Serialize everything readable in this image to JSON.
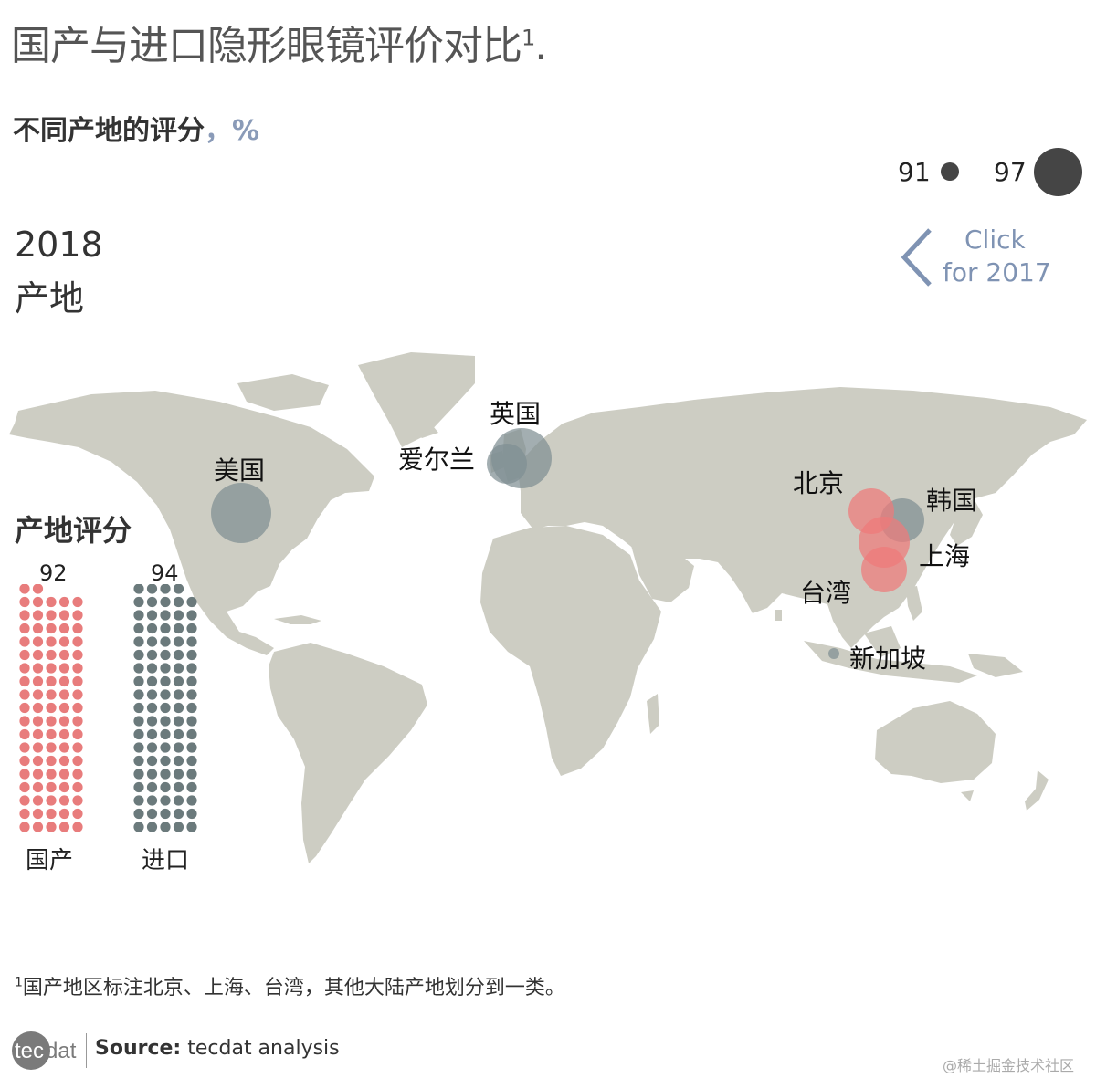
{
  "title": "国产与进口隐形眼镜评价对比",
  "title_footnote_mark": "1",
  "title_end": ".",
  "subtitle": "不同产地的评分",
  "subtitle_unit": "，%",
  "size_legend": {
    "min_label": "91",
    "max_label": "97"
  },
  "year": "2018",
  "year_sub": "产地",
  "nav": {
    "line1": "Click",
    "line2": "for 2017"
  },
  "cities": [
    {
      "name": "美国",
      "type": "import"
    },
    {
      "name": "英国",
      "type": "import"
    },
    {
      "name": "爱尔兰",
      "type": "import"
    },
    {
      "name": "北京",
      "type": "domestic"
    },
    {
      "name": "韩国",
      "type": "import"
    },
    {
      "name": "上海",
      "type": "domestic"
    },
    {
      "name": "台湾",
      "type": "domestic"
    },
    {
      "name": "新加坡",
      "type": "import"
    }
  ],
  "score_section": {
    "title": "产地评分",
    "domestic": {
      "score": "92",
      "label": "国产",
      "dots": 92,
      "color": "#e87c7c"
    },
    "import": {
      "score": "94",
      "label": "进口",
      "dots": 94,
      "color": "#6b7a7c"
    }
  },
  "colors": {
    "land": "#cdcdc3",
    "import_bubble": "#7f8f93",
    "domestic_bubble": "#ef7a7a",
    "accent": "#8a9bb8"
  },
  "footnote_mark": "1",
  "footnote": "国产地区标注北京、上海、台湾，其他大陆产地划分到一类。",
  "logo": {
    "left": "tec",
    "right": "dat"
  },
  "source_label": "Source:",
  "source_text": "tecdat analysis",
  "watermark": "@稀土掘金技术社区"
}
